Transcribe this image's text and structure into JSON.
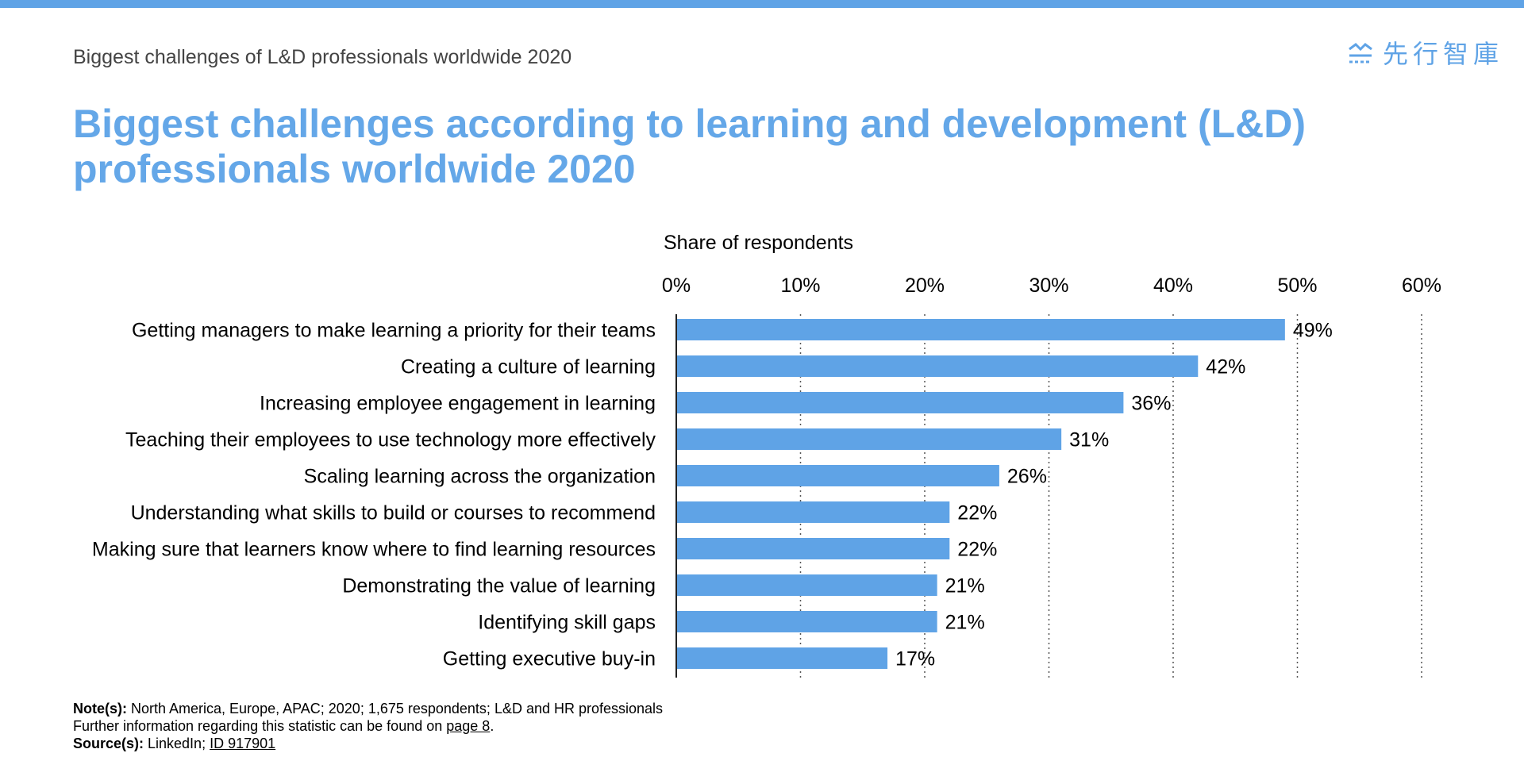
{
  "header": {
    "subtitle": "Biggest challenges of L&D professionals worldwide 2020",
    "logo_text": "先行智庫",
    "logo_icon": "logo-mark-icon",
    "accent_color": "#5fa3e6",
    "title_color": "#64a7e8"
  },
  "chart_data": {
    "type": "bar",
    "orientation": "horizontal",
    "title": "Biggest challenges according to learning and development (L&D) professionals worldwide 2020",
    "xlabel": "Share of respondents",
    "ylabel": "",
    "xlim": [
      0,
      60
    ],
    "x_ticks": [
      "0%",
      "10%",
      "20%",
      "30%",
      "40%",
      "50%",
      "60%"
    ],
    "x_tick_values": [
      0,
      10,
      20,
      30,
      40,
      50,
      60
    ],
    "grid": "vertical dotted",
    "bar_color": "#5fa3e6",
    "categories": [
      "Getting managers to make learning a priority for their teams",
      "Creating a culture of learning",
      "Increasing employee engagement in learning",
      "Teaching their employees to use technology more effectively",
      "Scaling learning across the organization",
      "Understanding what skills to build or courses to recommend",
      "Making sure that learners know where to find learning resources",
      "Demonstrating the value of learning",
      "Identifying skill gaps",
      "Getting executive buy-in"
    ],
    "values": [
      49,
      42,
      36,
      31,
      26,
      22,
      22,
      21,
      21,
      17
    ],
    "value_labels": [
      "49%",
      "42%",
      "36%",
      "31%",
      "26%",
      "22%",
      "22%",
      "21%",
      "21%",
      "17%"
    ]
  },
  "footer": {
    "note_label": "Note(s):",
    "note_text": " North America, Europe, APAC; 2020; 1,675 respondents; L&D and HR professionals",
    "info_text": "Further information regarding this statistic can be found on ",
    "info_link": "page 8",
    "info_end": ".",
    "source_label": "Source(s):",
    "source_text": " LinkedIn; ",
    "source_link": "ID 917901"
  }
}
